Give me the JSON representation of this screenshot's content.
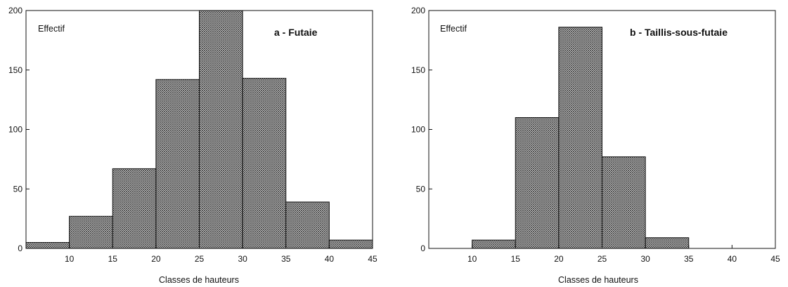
{
  "chart_data": [
    {
      "type": "bar",
      "title": "a - Futaie",
      "ylabel": "Effectif",
      "xlabel": "Classes de hauteurs",
      "xlim": [
        5,
        45
      ],
      "ylim": [
        0,
        200
      ],
      "xticks": [
        10,
        15,
        20,
        25,
        30,
        35,
        40,
        45
      ],
      "yticks": [
        0,
        50,
        100,
        150,
        200
      ],
      "bins": [
        {
          "from": 5,
          "to": 10,
          "value": 5
        },
        {
          "from": 10,
          "to": 15,
          "value": 27
        },
        {
          "from": 15,
          "to": 20,
          "value": 67
        },
        {
          "from": 20,
          "to": 25,
          "value": 142
        },
        {
          "from": 25,
          "to": 30,
          "value": 200
        },
        {
          "from": 30,
          "to": 35,
          "value": 143
        },
        {
          "from": 35,
          "to": 40,
          "value": 39
        },
        {
          "from": 40,
          "to": 45,
          "value": 7
        }
      ],
      "fill": "crosshatch"
    },
    {
      "type": "bar",
      "title": "b - Taillis-sous-futaie",
      "ylabel": "Effectif",
      "xlabel": "Classes de hauteurs",
      "xlim": [
        5,
        45
      ],
      "ylim": [
        0,
        200
      ],
      "xticks": [
        10,
        15,
        20,
        25,
        30,
        35,
        40,
        45
      ],
      "yticks": [
        0,
        50,
        100,
        150,
        200
      ],
      "bins": [
        {
          "from": 10,
          "to": 15,
          "value": 7
        },
        {
          "from": 15,
          "to": 20,
          "value": 110
        },
        {
          "from": 20,
          "to": 25,
          "value": 186
        },
        {
          "from": 25,
          "to": 30,
          "value": 77
        },
        {
          "from": 30,
          "to": 35,
          "value": 9
        }
      ],
      "fill": "crosshatch"
    }
  ]
}
